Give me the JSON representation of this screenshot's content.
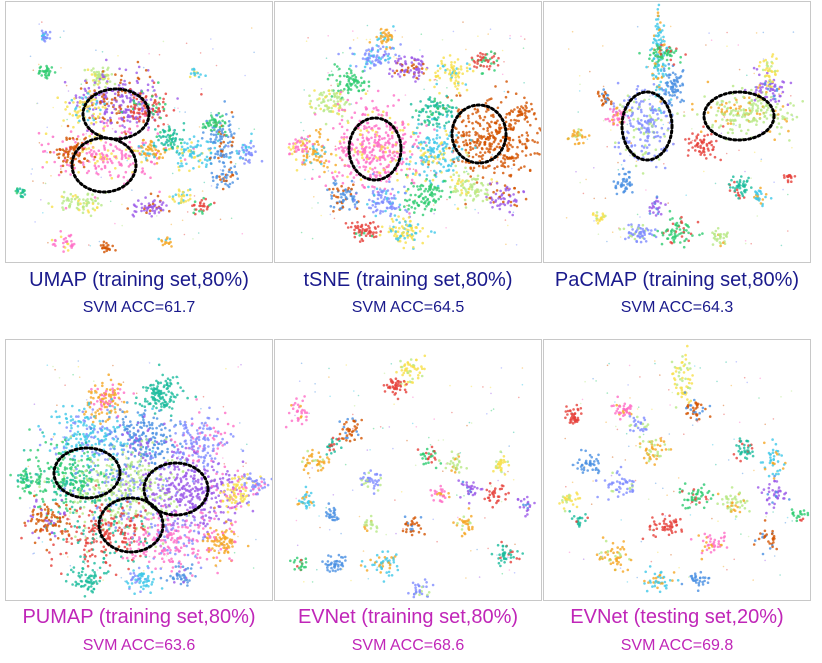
{
  "chart_data": [
    {
      "type": "scatter",
      "title": "UMAP (training set,80%)",
      "subtitle": "SVM ACC=61.7",
      "metric": "SVM ACC",
      "value": 61.7,
      "color": "#1a1a8c",
      "highlight_circles": 2
    },
    {
      "type": "scatter",
      "title": "tSNE (training set,80%)",
      "subtitle": "SVM ACC=64.5",
      "metric": "SVM ACC",
      "value": 64.5,
      "color": "#1a1a8c",
      "highlight_circles": 2
    },
    {
      "type": "scatter",
      "title": "PaCMAP (training set,80%)",
      "subtitle": "SVM ACC=64.3",
      "metric": "SVM ACC",
      "value": 64.3,
      "color": "#1a1a8c",
      "highlight_circles": 2
    },
    {
      "type": "scatter",
      "title": "PUMAP (training set,80%)",
      "subtitle": "SVM ACC=63.6",
      "metric": "SVM ACC",
      "value": 63.6,
      "color": "#c026b8",
      "highlight_circles": 3
    },
    {
      "type": "scatter",
      "title": "EVNet (training set,80%)",
      "subtitle": "SVM ACC=68.6",
      "metric": "SVM ACC",
      "value": 68.6,
      "color": "#c026b8",
      "highlight_circles": 0
    },
    {
      "type": "scatter",
      "title": "EVNet (testing set,20%)",
      "subtitle": "SVM ACC=69.8",
      "metric": "SVM ACC",
      "value": 69.8,
      "color": "#c026b8",
      "highlight_circles": 0
    }
  ],
  "palette": [
    "#e6403a",
    "#3ec8e8",
    "#9b59e8",
    "#f5a623",
    "#2ecc71",
    "#ff6ec7",
    "#4a90e2",
    "#f7e04a",
    "#1abc9c",
    "#b8e986",
    "#d35400",
    "#7f8cff"
  ]
}
